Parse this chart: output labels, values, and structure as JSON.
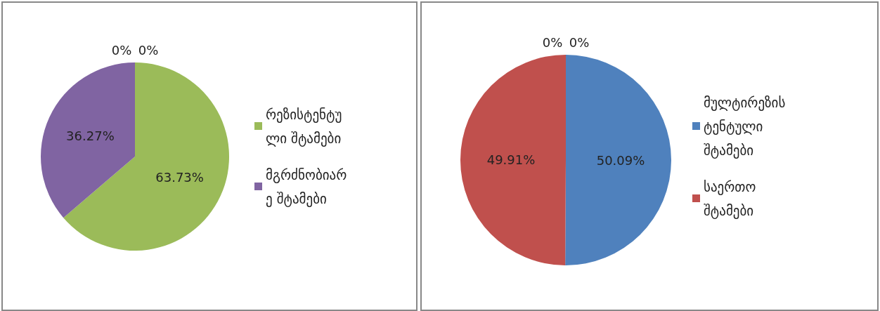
{
  "chart_data": [
    {
      "type": "pie",
      "categories": [
        "რეზისტენტული შტამები",
        "მგრძნობიარე შტამები",
        null,
        null
      ],
      "values": [
        63.73,
        36.27,
        0,
        0
      ],
      "colors": [
        "#9bbb59",
        "#8064a2",
        null,
        null
      ],
      "value_labels": [
        "63.73%",
        "36.27%",
        "0%",
        "0%"
      ],
      "legend": "right"
    },
    {
      "type": "pie",
      "categories": [
        "მულტირეზისტენტული შტამები",
        "საერთო შტამები",
        null,
        null
      ],
      "values": [
        50.09,
        49.91,
        0,
        0
      ],
      "colors": [
        "#4f81bd",
        "#c0504d",
        null,
        null
      ],
      "value_labels": [
        "50.09%",
        "49.91%",
        "0%",
        "0%"
      ],
      "legend": "right"
    }
  ]
}
